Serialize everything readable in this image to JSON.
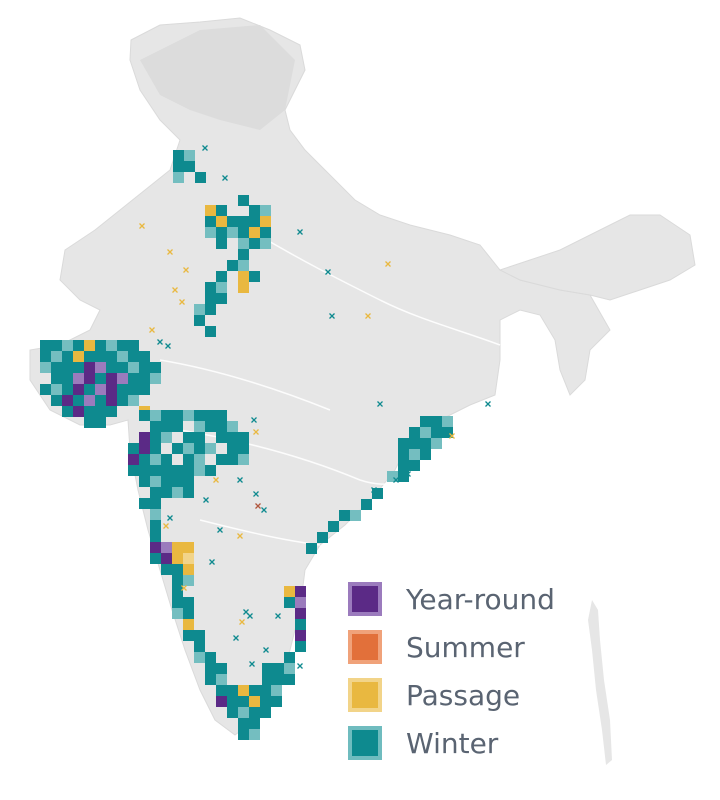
{
  "map": {
    "legend": [
      {
        "label": "Year-round",
        "color": "#5b2a86",
        "border": "#9b7bbd"
      },
      {
        "label": "Summer",
        "color": "#e2703a",
        "border": "#f0a27a"
      },
      {
        "label": "Passage",
        "color": "#e9b840",
        "border": "#f2d489"
      },
      {
        "label": "Winter",
        "color": "#0e8a8f",
        "border": "#6fbcbf"
      }
    ],
    "land_color": "#e6e6e6",
    "river_color": "#ffffff"
  }
}
